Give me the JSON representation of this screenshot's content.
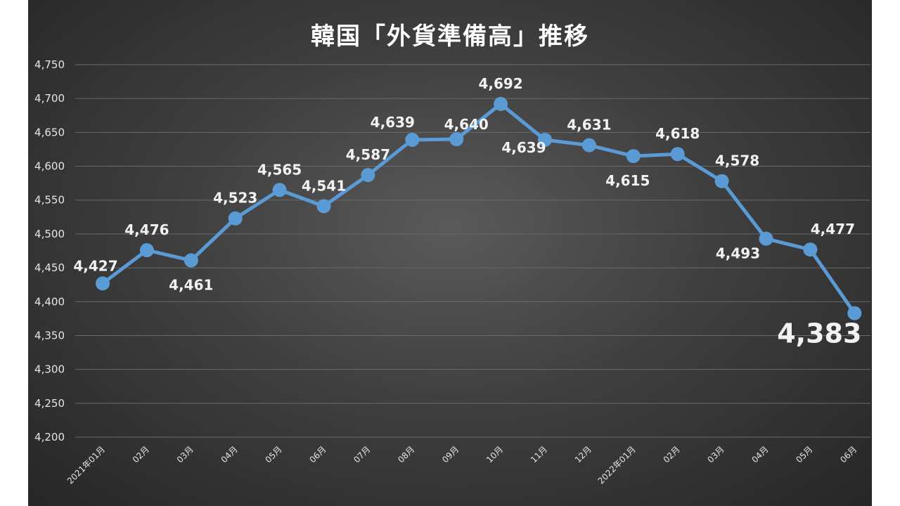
{
  "chart_data": {
    "type": "line",
    "title": "韓国「外貨準備高」推移",
    "categories": [
      "2021年01月",
      "02月",
      "03月",
      "04月",
      "05月",
      "06月",
      "07月",
      "08月",
      "09月",
      "10月",
      "11月",
      "12月",
      "2022年01月",
      "02月",
      "03月",
      "04月",
      "05月",
      "06月"
    ],
    "series": [
      {
        "values": [
          4427,
          4476,
          4461,
          4523,
          4565,
          4541,
          4587,
          4639,
          4640,
          4692,
          4639,
          4631,
          4615,
          4618,
          4578,
          4493,
          4477,
          4383
        ]
      }
    ],
    "data_labels": [
      "4,427",
      "4,476",
      "4,461",
      "4,523",
      "4,565",
      "4,541",
      "4,587",
      "4,639",
      "4,640",
      "4,692",
      "4,639",
      "4,631",
      "4,615",
      "4,618",
      "4,578",
      "4,493",
      "4,477",
      "4,383"
    ],
    "y_ticks": [
      "4,200",
      "4,250",
      "4,300",
      "4,350",
      "4,400",
      "4,450",
      "4,500",
      "4,550",
      "4,600",
      "4,650",
      "4,700",
      "4,750"
    ],
    "ylim": [
      4200,
      4750
    ],
    "grid": true,
    "legend": "none",
    "colors": {
      "line": "#5b9bd5",
      "grid": "#6a6a6a",
      "text": "#f2f2f2"
    }
  }
}
